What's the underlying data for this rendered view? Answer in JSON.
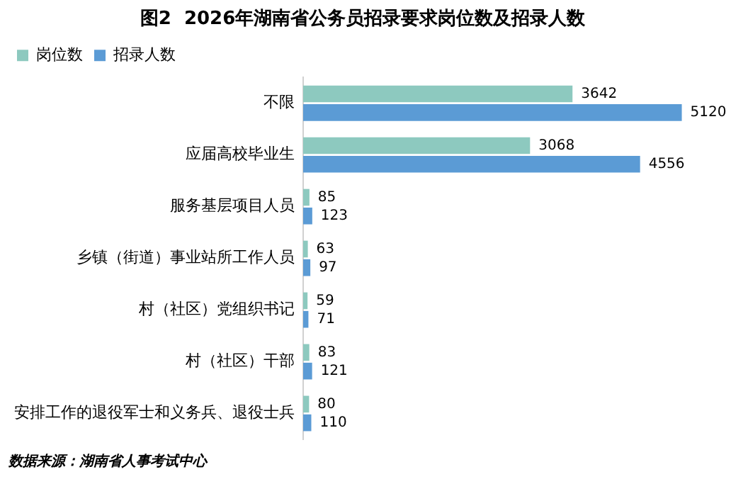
{
  "chart_data": {
    "type": "bar",
    "orientation": "horizontal",
    "title": "图2  2026年湖南省公务员招录要求岗位数及招录人数",
    "categories": [
      "不限",
      "应届高校毕业生",
      "服务基层项目人员",
      "乡镇（街道）事业站所工作人员",
      "村（社区）党组织书记",
      "村（社区）干部",
      "安排工作的退役军士和义务兵、退役士兵"
    ],
    "series": [
      {
        "name": "岗位数",
        "color": "#8dc9bf",
        "values": [
          3642,
          3068,
          85,
          63,
          59,
          83,
          80
        ]
      },
      {
        "name": "招录人数",
        "color": "#5b9bd5",
        "values": [
          5120,
          4556,
          123,
          97,
          71,
          121,
          110
        ]
      }
    ],
    "data_labels": true,
    "legend": "top left",
    "annotations": [
      "数据来源：湖南省人事考试中心"
    ]
  }
}
